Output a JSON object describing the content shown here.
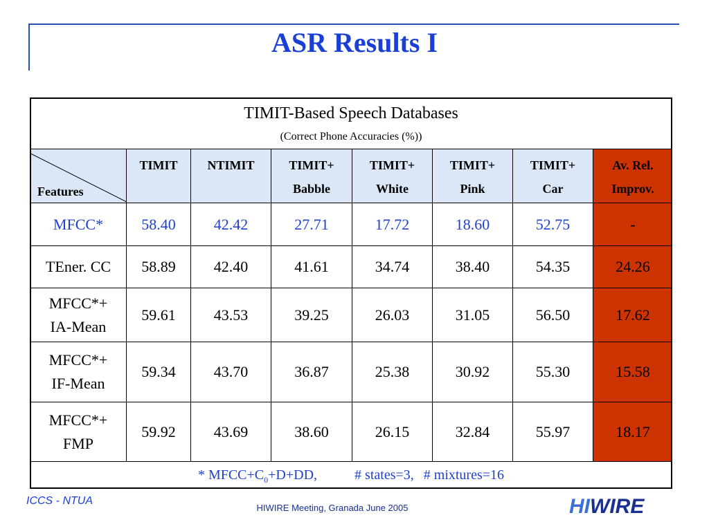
{
  "header": {
    "title": "ASR Results I"
  },
  "table": {
    "caption": "TIMIT-Based Speech Databases",
    "subcaption": "(Correct Phone Accuracies (%))",
    "corner": "Features",
    "columns": [
      [
        "TIMIT"
      ],
      [
        "NTIMIT"
      ],
      [
        "TIMIT+",
        "Babble"
      ],
      [
        "TIMIT+",
        "White"
      ],
      [
        "TIMIT+",
        "Pink"
      ],
      [
        "TIMIT+",
        "Car"
      ],
      [
        "Av. Rel.",
        "Improv."
      ]
    ],
    "rows": [
      {
        "label": [
          "MFCC*"
        ],
        "values": [
          "58.40",
          "42.42",
          "27.71",
          "17.72",
          "18.60",
          "52.75",
          "-"
        ]
      },
      {
        "label": [
          "TEner. CC"
        ],
        "values": [
          "58.89",
          "42.40",
          "41.61",
          "34.74",
          "38.40",
          "54.35",
          "24.26"
        ]
      },
      {
        "label": [
          "MFCC*+",
          "IA-Mean"
        ],
        "values": [
          "59.61",
          "43.53",
          "39.25",
          "26.03",
          "31.05",
          "56.50",
          "17.62"
        ]
      },
      {
        "label": [
          "MFCC*+",
          "IF-Mean"
        ],
        "values": [
          "59.34",
          "43.70",
          "36.87",
          "25.38",
          "30.92",
          "55.30",
          "15.58"
        ]
      },
      {
        "label": [
          "MFCC*+",
          "FMP"
        ],
        "values": [
          "59.92",
          "43.69",
          "38.60",
          "26.15",
          "32.84",
          "55.97",
          "18.17"
        ]
      }
    ],
    "footnote": [
      "* MFCC+C",
      "0",
      "+D+DD,",
      "# states=3,",
      "# mixtures=16"
    ]
  },
  "footer": {
    "left": "ICCS - NTUA",
    "center": "HIWIRE Meeting, Granada June 2005",
    "logo": [
      "HI",
      "WI",
      "RE"
    ]
  }
}
